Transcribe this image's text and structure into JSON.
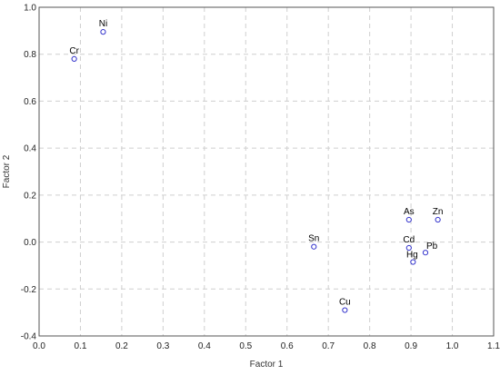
{
  "chart_data": {
    "type": "scatter",
    "title": "",
    "xlabel": "Factor 1",
    "ylabel": "Factor 2",
    "xlim": [
      0.0,
      1.1
    ],
    "ylim": [
      -0.4,
      1.0
    ],
    "x_ticks": [
      "0.0",
      "0.1",
      "0.2",
      "0.3",
      "0.4",
      "0.5",
      "0.6",
      "0.7",
      "0.8",
      "0.9",
      "1.0",
      "1.1"
    ],
    "y_ticks": [
      "-0.4",
      "-0.2",
      "0.0",
      "0.2",
      "0.4",
      "0.6",
      "0.8",
      "1.0"
    ],
    "grid": true,
    "marker_color": "#3333cc",
    "points": [
      {
        "label": "Ni",
        "x": 0.155,
        "y": 0.895
      },
      {
        "label": "Cr",
        "x": 0.085,
        "y": 0.78
      },
      {
        "label": "Sn",
        "x": 0.665,
        "y": -0.02
      },
      {
        "label": "Cu",
        "x": 0.74,
        "y": -0.29
      },
      {
        "label": "As",
        "x": 0.895,
        "y": 0.095
      },
      {
        "label": "Zn",
        "x": 0.965,
        "y": 0.095
      },
      {
        "label": "Cd",
        "x": 0.895,
        "y": -0.025
      },
      {
        "label": "Pb",
        "x": 0.935,
        "y": -0.045
      },
      {
        "label": "Hg",
        "x": 0.905,
        "y": -0.085
      }
    ]
  }
}
